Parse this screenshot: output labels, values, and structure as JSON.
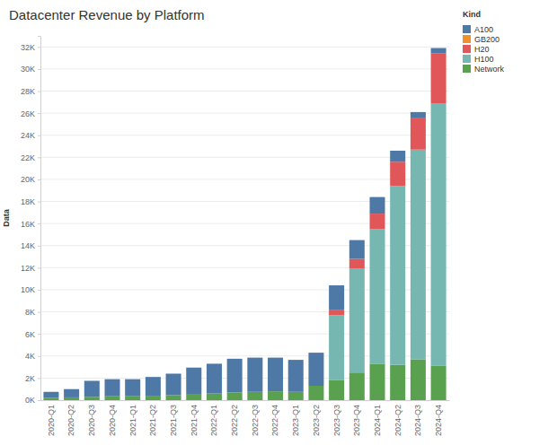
{
  "chart_data": {
    "type": "bar",
    "title": "Datacenter Revenue by Platform",
    "y_label": "Data",
    "legend_title": "Kind",
    "stacked": true,
    "grid": true,
    "legend": "right",
    "categories": [
      "2020-Q1",
      "2020-Q2",
      "2020-Q3",
      "2020-Q4",
      "2021-Q1",
      "2021-Q2",
      "2021-Q3",
      "2021-Q4",
      "2022-Q1",
      "2022-Q2",
      "2022-Q3",
      "2022-Q4",
      "2023-Q1",
      "2023-Q2",
      "2023-Q3",
      "2023-Q4",
      "2024-Q1",
      "2024-Q2",
      "2024-Q3",
      "2024-Q4"
    ],
    "series": [
      {
        "name": "A100",
        "color": "#4e79a7",
        "values": [
          550,
          750,
          1450,
          1550,
          1550,
          1700,
          1950,
          2450,
          2700,
          3050,
          3100,
          3050,
          2900,
          3000,
          2200,
          1700,
          1500,
          1000,
          500,
          500
        ]
      },
      {
        "name": "GB200",
        "color": "#f28e2b",
        "values": [
          0,
          0,
          0,
          0,
          0,
          0,
          0,
          0,
          0,
          0,
          0,
          0,
          0,
          0,
          0,
          0,
          0,
          0,
          0,
          0
        ]
      },
      {
        "name": "H20",
        "color": "#e15759",
        "values": [
          0,
          0,
          0,
          0,
          0,
          0,
          0,
          0,
          0,
          0,
          0,
          0,
          0,
          0,
          500,
          900,
          1400,
          2200,
          2900,
          4500
        ]
      },
      {
        "name": "H100",
        "color": "#76b7b2",
        "values": [
          0,
          0,
          0,
          0,
          0,
          0,
          0,
          0,
          0,
          0,
          0,
          0,
          0,
          0,
          5900,
          9400,
          12200,
          16200,
          19000,
          23800
        ]
      },
      {
        "name": "Network",
        "color": "#59a14f",
        "values": [
          200,
          250,
          300,
          350,
          350,
          400,
          450,
          500,
          600,
          700,
          750,
          800,
          750,
          1300,
          1800,
          2500,
          3300,
          3200,
          3700,
          3100
        ]
      }
    ],
    "ylim": [
      0,
      33000
    ],
    "yticks": [
      {
        "value": 0,
        "label": "0K"
      },
      {
        "value": 2000,
        "label": "2K"
      },
      {
        "value": 4000,
        "label": "4K"
      },
      {
        "value": 6000,
        "label": "6K"
      },
      {
        "value": 8000,
        "label": "8K"
      },
      {
        "value": 10000,
        "label": "10K"
      },
      {
        "value": 12000,
        "label": "12K"
      },
      {
        "value": 14000,
        "label": "14K"
      },
      {
        "value": 16000,
        "label": "16K"
      },
      {
        "value": 18000,
        "label": "18K"
      },
      {
        "value": 20000,
        "label": "20K"
      },
      {
        "value": 22000,
        "label": "22K"
      },
      {
        "value": 24000,
        "label": "24K"
      },
      {
        "value": 26000,
        "label": "26K"
      },
      {
        "value": 28000,
        "label": "28K"
      },
      {
        "value": 30000,
        "label": "30K"
      },
      {
        "value": 32000,
        "label": "32K"
      }
    ]
  }
}
